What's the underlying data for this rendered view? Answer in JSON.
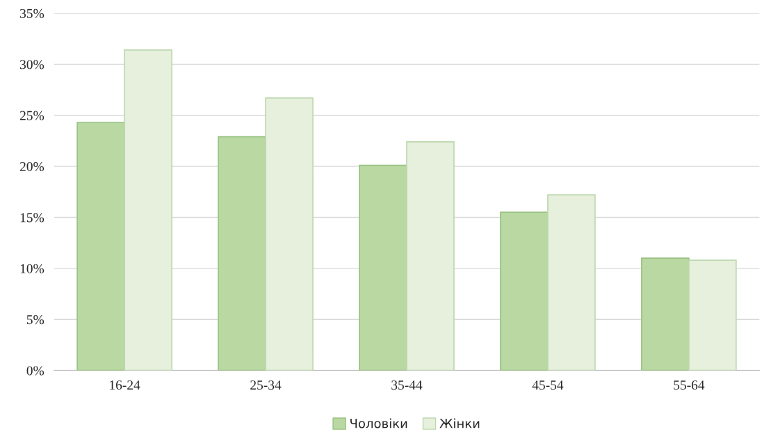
{
  "chart_data": {
    "type": "bar",
    "categories": [
      "16-24",
      "25-34",
      "35-44",
      "45-54",
      "55-64"
    ],
    "series": [
      {
        "name": "Чоловіки",
        "color": "#b9d8a2",
        "values": [
          24.3,
          22.9,
          20.1,
          15.5,
          11.0
        ]
      },
      {
        "name": "Жінки",
        "color": "#e6f0dc",
        "values": [
          31.4,
          26.7,
          22.4,
          17.2,
          10.8
        ]
      }
    ],
    "ylim": [
      0,
      35
    ],
    "yticks": [
      {
        "value": 0,
        "label": "0%"
      },
      {
        "value": 5,
        "label": "5%"
      },
      {
        "value": 10,
        "label": "10%"
      },
      {
        "value": 15,
        "label": "15%"
      },
      {
        "value": 20,
        "label": "20%"
      },
      {
        "value": 25,
        "label": "25%"
      },
      {
        "value": 30,
        "label": "30%"
      },
      {
        "value": 35,
        "label": "35%"
      }
    ],
    "grid": "y",
    "legend": "bottom"
  }
}
